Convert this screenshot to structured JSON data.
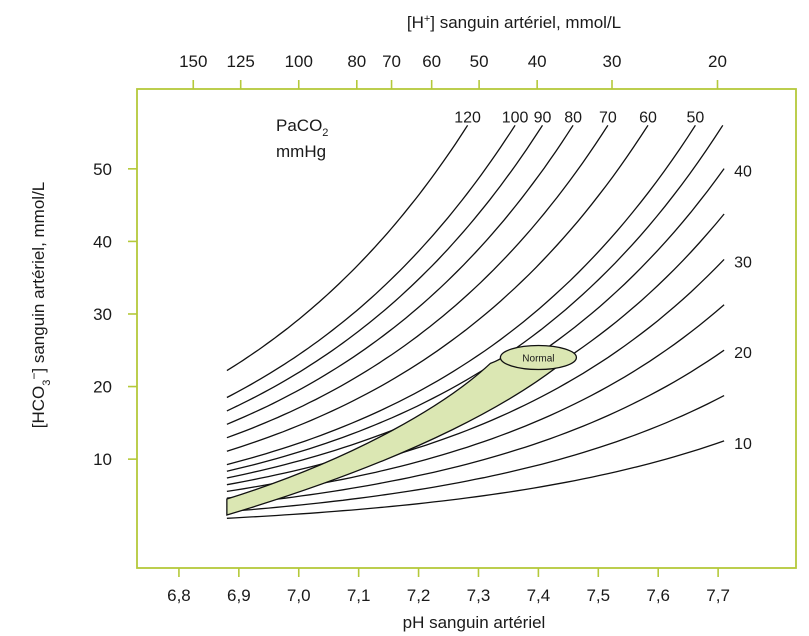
{
  "chart_data": {
    "type": "line",
    "title": "",
    "xlabel": "pH sanguin artériel",
    "ylabel_parts": [
      "[HCO",
      "3",
      "−",
      "] sanguin artériel, mmol/L"
    ],
    "x2label_parts": [
      "[H",
      "+",
      "] sanguin artériel, mmol/L"
    ],
    "xlim": [
      6.73,
      7.83
    ],
    "ylim": [
      -5,
      61
    ],
    "x_ticks": [
      6.8,
      6.9,
      7.0,
      7.1,
      7.2,
      7.3,
      7.4,
      7.5,
      7.6,
      7.7
    ],
    "x_tick_labels": [
      "6,8",
      "6,9",
      "7,0",
      "7,1",
      "7,2",
      "7,3",
      "7,4",
      "7,5",
      "7,6",
      "7,7"
    ],
    "y_ticks": [
      10,
      20,
      30,
      40,
      50
    ],
    "y_tick_labels": [
      "10",
      "20",
      "30",
      "40",
      "50"
    ],
    "x2_ticks": [
      150,
      125,
      100,
      80,
      70,
      60,
      50,
      40,
      30,
      20
    ],
    "x2_tick_labels": [
      "150",
      "125",
      "100",
      "80",
      "70",
      "60",
      "50",
      "40",
      "30",
      "20"
    ],
    "legend_title_parts": [
      "PaCO",
      "2"
    ],
    "legend_unit": "mmHg",
    "isopleths": [
      {
        "label": "10",
        "pco2": 10
      },
      {
        "label": "20",
        "pco2": 20
      },
      {
        "label": "30",
        "pco2": 30
      },
      {
        "label": "40",
        "pco2": 40
      },
      {
        "label": "50",
        "pco2": 50
      },
      {
        "label": "60",
        "pco2": 60
      },
      {
        "label": "70",
        "pco2": 70
      },
      {
        "label": "80",
        "pco2": 80
      },
      {
        "label": "90",
        "pco2": 90
      },
      {
        "label": "100",
        "pco2": 100
      },
      {
        "label": "120",
        "pco2": 120
      }
    ],
    "unlabeled_isopleths": [
      15,
      25,
      35,
      45
    ],
    "normal_region": {
      "label": "Normal",
      "center": {
        "ph": 7.4,
        "hco3": 24
      },
      "band_upper": [
        [
          6.88,
          4.5
        ],
        [
          7.1,
          10.2
        ],
        [
          7.25,
          17.8
        ],
        [
          7.32,
          23.2
        ],
        [
          7.36,
          25.2
        ]
      ],
      "band_lower": [
        [
          7.46,
          24.6
        ],
        [
          7.37,
          18.3
        ],
        [
          7.2,
          10.2
        ],
        [
          6.88,
          2.3
        ]
      ]
    },
    "grid": false
  }
}
